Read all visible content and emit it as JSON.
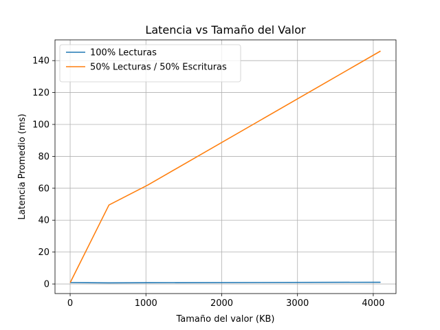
{
  "chart_data": {
    "type": "line",
    "title": "Latencia vs Tamaño del Valor",
    "xlabel": "Tamaño del valor (KB)",
    "ylabel": "Latencia Promedio (ms)",
    "xlim": [
      -200,
      4300
    ],
    "ylim": [
      -6,
      153
    ],
    "xticks": [
      0,
      1000,
      2000,
      3000,
      4000
    ],
    "yticks": [
      0,
      20,
      40,
      60,
      80,
      100,
      120,
      140
    ],
    "grid": true,
    "legend_position": "top-left",
    "series": [
      {
        "name": "100% Lecturas",
        "color": "#1f77b4",
        "x": [
          1,
          512,
          1024,
          4096
        ],
        "y": [
          0.9,
          0.7,
          0.8,
          1.1
        ]
      },
      {
        "name": "50% Lecturas / 50% Escrituras",
        "color": "#ff7f0e",
        "x": [
          1,
          512,
          1024,
          4096
        ],
        "y": [
          0.9,
          49.5,
          62,
          146
        ]
      }
    ]
  }
}
